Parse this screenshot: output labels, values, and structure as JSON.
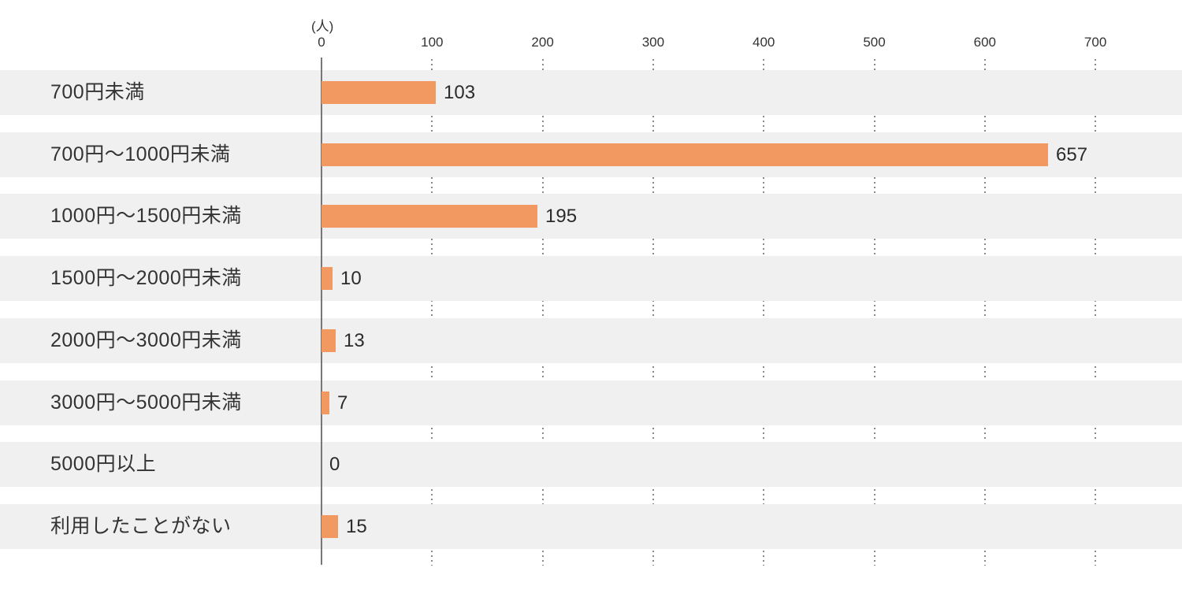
{
  "chart_data": {
    "type": "bar",
    "orientation": "horizontal",
    "title": "",
    "unit_label": "(人)",
    "categories": [
      "700円未満",
      "700円〜1000円未満",
      "1000円〜1500円未満",
      "1500円〜2000円未満",
      "2000円〜3000円未満",
      "3000円〜5000円未満",
      "5000円以上",
      "利用したことがない"
    ],
    "values": [
      103,
      657,
      195,
      10,
      13,
      7,
      0,
      15
    ],
    "xlim": [
      0,
      700
    ],
    "xticks": [
      0,
      100,
      200,
      300,
      400,
      500,
      600,
      700
    ],
    "grid": "dotted-vertical",
    "legend": "none",
    "colors": {
      "bar": "#f29961",
      "row_band": "#f0f0f0",
      "axis_line": "#777777",
      "gridline": "#8a8a8a",
      "text": "#333333"
    }
  }
}
